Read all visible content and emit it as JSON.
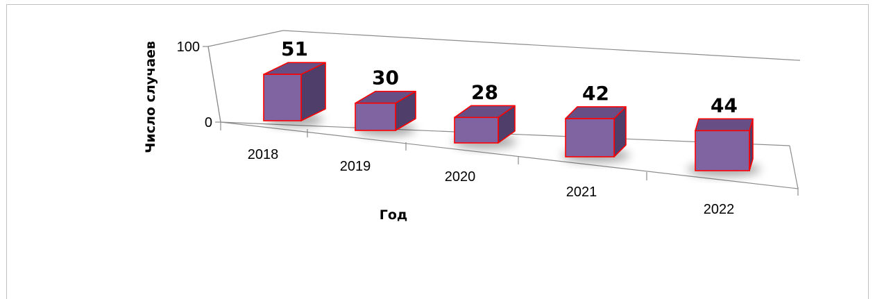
{
  "chart_data": {
    "type": "bar",
    "categories": [
      "2018",
      "2019",
      "2020",
      "2021",
      "2022"
    ],
    "values": [
      51,
      30,
      28,
      42,
      44
    ],
    "title": "",
    "xlabel": "Год",
    "ylabel": "Число случаев",
    "ylim": [
      0,
      100
    ],
    "yticks": [
      "0",
      "100"
    ],
    "legend": "none",
    "grid": false,
    "colors": {
      "front": "#8064a2",
      "top": "#674f86",
      "side": "#4f3d6a",
      "edge": "#ff0000",
      "axis": "#8c8c8c"
    }
  }
}
